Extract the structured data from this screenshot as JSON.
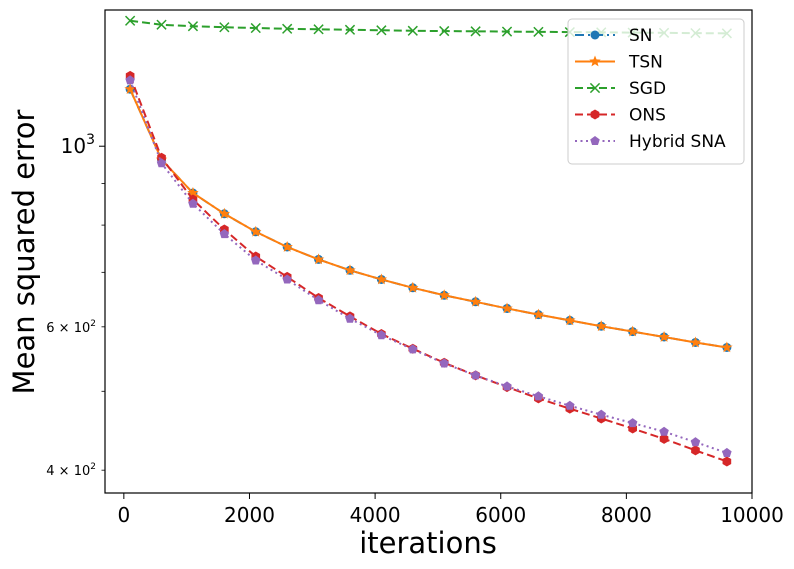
{
  "chart_data": {
    "type": "line",
    "xlabel": "iterations",
    "ylabel": "Mean squared error",
    "yscale": "log",
    "xlim": [
      -300,
      10000
    ],
    "ylim": [
      375,
      1470
    ],
    "legend_position": "upper-right",
    "grid": false,
    "x_ticks": [
      {
        "value": 0,
        "label": "0"
      },
      {
        "value": 2000,
        "label": "2000"
      },
      {
        "value": 4000,
        "label": "4000"
      },
      {
        "value": 6000,
        "label": "6000"
      },
      {
        "value": 8000,
        "label": "8000"
      },
      {
        "value": 10000,
        "label": "10000"
      }
    ],
    "y_major_ticks": [
      {
        "value": 1000,
        "base": "10",
        "exp": "3"
      }
    ],
    "y_minor_labeled_ticks": [
      {
        "value": 400,
        "mantissa": "4",
        "base": "10",
        "exp": "2"
      },
      {
        "value": 600,
        "mantissa": "6",
        "base": "10",
        "exp": "2"
      }
    ],
    "y_minor_ticks": [
      500,
      700,
      800,
      900
    ],
    "x": [
      100,
      600,
      1100,
      1600,
      2100,
      2600,
      3100,
      3600,
      4100,
      4600,
      5100,
      5600,
      6100,
      6600,
      7100,
      7600,
      8100,
      8600,
      9100,
      9600
    ],
    "series": [
      {
        "name": "SN",
        "color": "#1f77b4",
        "linestyle": "dashdot",
        "marker": "circle",
        "values": [
          1175,
          963,
          876,
          826,
          785,
          752,
          726,
          704,
          686,
          670,
          656,
          644,
          632,
          621,
          611,
          601,
          592,
          583,
          574,
          566
        ]
      },
      {
        "name": "TSN",
        "color": "#ff7f0e",
        "linestyle": "solid",
        "marker": "star",
        "values": [
          1175,
          963,
          876,
          826,
          785,
          752,
          726,
          704,
          686,
          670,
          656,
          644,
          632,
          621,
          611,
          601,
          592,
          583,
          574,
          566
        ]
      },
      {
        "name": "SGD",
        "color": "#2ca02c",
        "linestyle": "dashed",
        "marker": "x",
        "values": [
          1426,
          1410,
          1404,
          1400,
          1397,
          1394,
          1392,
          1390,
          1388,
          1386,
          1385,
          1384,
          1383,
          1382,
          1381,
          1380,
          1379,
          1378,
          1377,
          1376
        ]
      },
      {
        "name": "ONS",
        "color": "#d62728",
        "linestyle": "dashed",
        "marker": "hexagon",
        "values": [
          1220,
          968,
          860,
          790,
          732,
          691,
          651,
          618,
          588,
          564,
          542,
          523,
          506,
          490,
          476,
          463,
          450,
          437,
          423,
          410
        ]
      },
      {
        "name": "Hybrid SNA",
        "color": "#9467bd",
        "linestyle": "dotted",
        "marker": "pentagon",
        "values": [
          1205,
          953,
          850,
          780,
          724,
          686,
          647,
          614,
          586,
          563,
          541,
          523,
          507,
          493,
          480,
          468,
          457,
          446,
          433,
          420
        ]
      }
    ]
  }
}
